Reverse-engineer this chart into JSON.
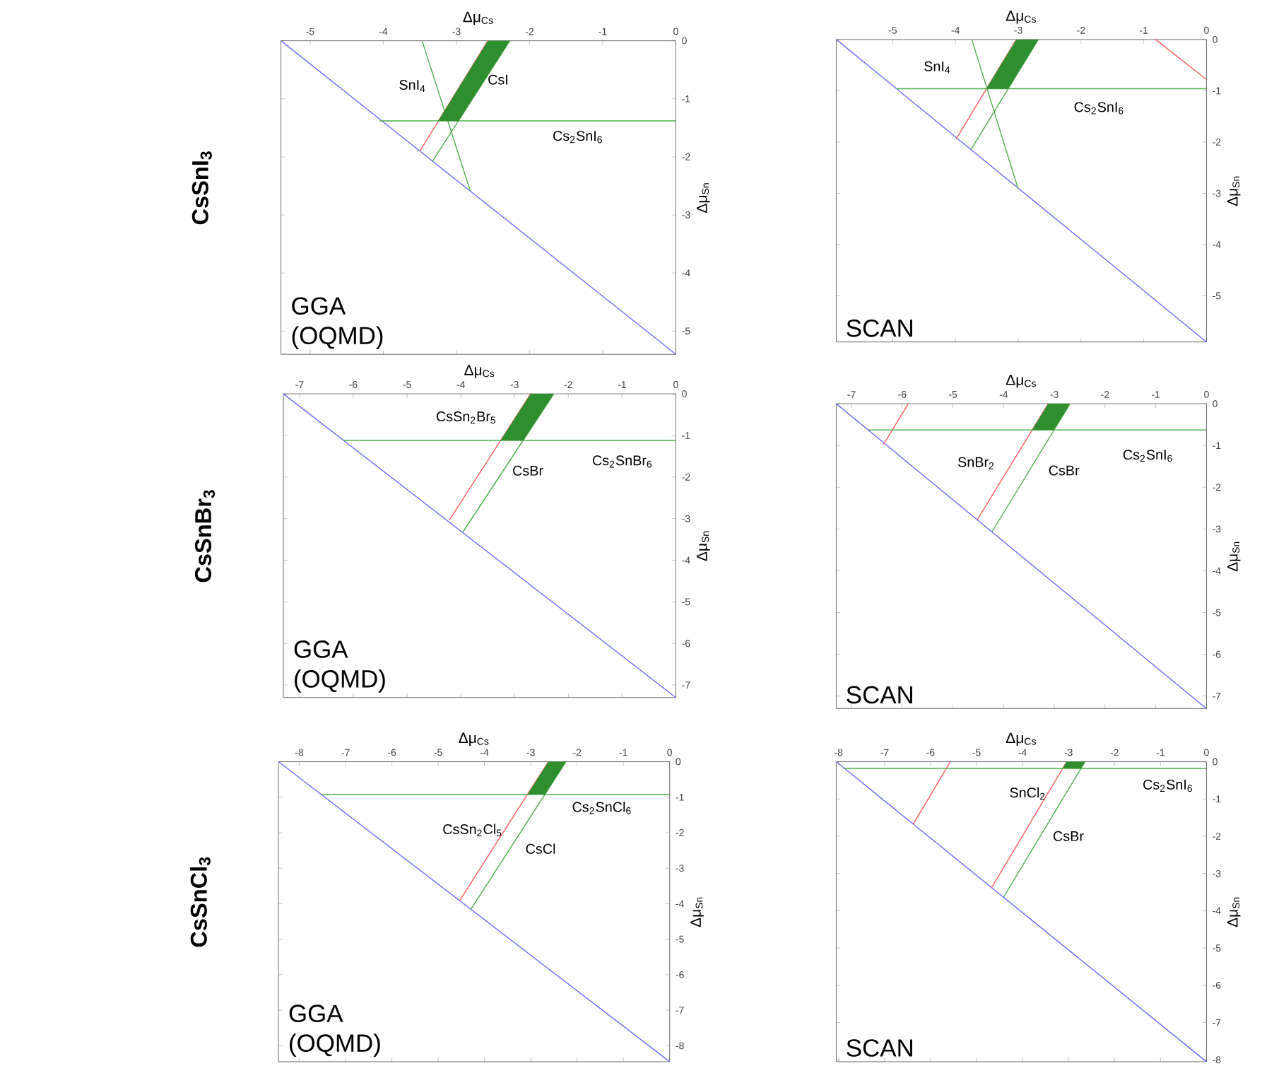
{
  "chart_data": [
    {
      "type": "line",
      "title": "CsSnI$_{3}$",
      "xlabel": "Δμ$_{Cs}$",
      "ylabel": "Δμ$_{Sn}$",
      "xlim": [
        -5.4,
        0
      ],
      "ylim": [
        -5.4,
        0
      ],
      "xticks": [
        -5,
        -4,
        -3,
        -2,
        -1,
        0
      ],
      "yticks": [
        -5,
        -4,
        -3,
        -2,
        -1,
        0
      ],
      "series": [
        {
          "color": "#6b6bff",
          "x": [
            -5.4,
            0
          ],
          "values": [
            0,
            -5.4
          ]
        },
        {
          "color": "#ff5c5c",
          "x": [
            -2.57,
            -3.5
          ],
          "values": [
            0,
            -1.9
          ]
        },
        {
          "color": "#4caf4c",
          "x": [
            -2.27,
            -3.33
          ],
          "values": [
            0,
            -2.08
          ]
        },
        {
          "color": "#4caf4c",
          "x": [
            -4.05,
            0
          ],
          "values": [
            -1.38,
            -1.38
          ]
        },
        {
          "color": "#4caf4c",
          "x": [
            -3.47,
            -2.81
          ],
          "values": [
            0,
            -2.59
          ]
        },
        {
          "type": "area",
          "color": "#2f8f2f",
          "x": [
            -2.57,
            -2.27,
            -2.97,
            -3.25
          ],
          "values": [
            0,
            0,
            -1.38,
            -1.38
          ]
        }
      ],
      "annotations": [
        "SnI$_{4}$",
        "CsI",
        "Cs$_{2}$SnI$_{6}$",
        "GGA (OQMD)"
      ]
    },
    {
      "type": "line",
      "xlabel": "Δμ$_{Cs}$",
      "ylabel": "Δμ$_{Sn}$",
      "xlim": [
        -5.9,
        0
      ],
      "ylim": [
        -5.9,
        0
      ],
      "xticks": [
        -5,
        -4,
        -3,
        -2,
        -1,
        0
      ],
      "yticks": [
        -5,
        -4,
        -3,
        -2,
        -1,
        0
      ],
      "series": [
        {
          "color": "#6b6bff",
          "x": [
            -5.9,
            0
          ],
          "values": [
            0,
            -5.9
          ]
        },
        {
          "color": "#ff5c5c",
          "x": [
            -0.81,
            0
          ],
          "values": [
            0,
            -0.78
          ]
        },
        {
          "color": "#ff5c5c",
          "x": [
            -3.03,
            -3.99
          ],
          "values": [
            0,
            -1.94
          ]
        },
        {
          "color": "#4caf4c",
          "x": [
            -2.68,
            -3.75
          ],
          "values": [
            0,
            -2.14
          ]
        },
        {
          "color": "#4caf4c",
          "x": [
            -4.94,
            0
          ],
          "values": [
            -0.96,
            -0.96
          ]
        },
        {
          "color": "#4caf4c",
          "x": [
            -3.74,
            -3.0
          ],
          "values": [
            0,
            -2.92
          ]
        },
        {
          "type": "area",
          "color": "#2f8f2f",
          "x": [
            -3.03,
            -2.68,
            -3.16,
            -3.51
          ],
          "values": [
            0,
            0,
            -0.96,
            -0.96
          ]
        }
      ],
      "annotations": [
        "SnI$_{4}$",
        "Cs$_{2}$SnI$_{6}$",
        "SCAN"
      ]
    },
    {
      "type": "line",
      "title": "CsSnBr$_{3}$",
      "xlabel": "Δμ$_{Cs}$",
      "ylabel": "Δμ$_{Sn}$",
      "xlim": [
        -7.3,
        0
      ],
      "ylim": [
        -7.3,
        0
      ],
      "xticks": [
        -7,
        -6,
        -5,
        -4,
        -3,
        -2,
        -1,
        0
      ],
      "yticks": [
        -7,
        -6,
        -5,
        -4,
        -3,
        -2,
        -1,
        0
      ],
      "series": [
        {
          "color": "#6b6bff",
          "x": [
            -7.3,
            0
          ],
          "values": [
            0,
            -7.3
          ]
        },
        {
          "color": "#ff5c5c",
          "x": [
            -2.7,
            -4.21
          ],
          "values": [
            0,
            -3.03
          ]
        },
        {
          "color": "#4caf4c",
          "x": [
            -2.27,
            -3.96
          ],
          "values": [
            0,
            -3.32
          ]
        },
        {
          "color": "#4caf4c",
          "x": [
            -6.18,
            0
          ],
          "values": [
            -1.12,
            -1.12
          ]
        },
        {
          "type": "area",
          "color": "#2f8f2f",
          "x": [
            -2.7,
            -2.27,
            -2.84,
            -3.26
          ],
          "values": [
            0,
            0,
            -1.12,
            -1.12
          ]
        }
      ],
      "annotations": [
        "CsSn$_{2}$Br$_{5}$",
        "CsBr",
        "Cs$_{2}$SnBr$_{6}$",
        "GGA (OQMD)"
      ]
    },
    {
      "type": "line",
      "xlabel": "Δμ$_{Cs}$",
      "ylabel": "Δμ$_{Sn}$",
      "xlim": [
        -7.3,
        0
      ],
      "ylim": [
        -7.3,
        0
      ],
      "xticks": [
        -7,
        -6,
        -5,
        -4,
        -3,
        -2,
        -1,
        0
      ],
      "yticks": [
        -7,
        -6,
        -5,
        -4,
        -3,
        -2,
        -1,
        0
      ],
      "series": [
        {
          "color": "#6b6bff",
          "x": [
            -7.3,
            0
          ],
          "values": [
            0,
            -7.3
          ]
        },
        {
          "color": "#ff5c5c",
          "x": [
            -5.88,
            -6.37
          ],
          "values": [
            0,
            -0.98
          ]
        },
        {
          "color": "#ff5c5c",
          "x": [
            -3.12,
            -4.52
          ],
          "values": [
            0,
            -2.78
          ]
        },
        {
          "color": "#4caf4c",
          "x": [
            -2.69,
            -4.23
          ],
          "values": [
            0,
            -3.07
          ]
        },
        {
          "color": "#4caf4c",
          "x": [
            -6.67,
            0
          ],
          "values": [
            -0.63,
            -0.63
          ]
        },
        {
          "type": "area",
          "color": "#2f8f2f",
          "x": [
            -3.12,
            -2.69,
            -3.01,
            -3.44
          ],
          "values": [
            0,
            0,
            -0.63,
            -0.63
          ]
        }
      ],
      "annotations": [
        "SnBr$_{2}$",
        "CsBr",
        "Cs$_{2}$SnI$_{6}$",
        "SCAN"
      ]
    },
    {
      "type": "line",
      "title": "CsSnCl$_{3}$",
      "xlabel": "Δμ$_{Cs}$",
      "ylabel": "Δμ$_{Sn}$",
      "xlim": [
        -8.45,
        0
      ],
      "ylim": [
        -8.45,
        0
      ],
      "xticks": [
        -8,
        -7,
        -6,
        -5,
        -4,
        -3,
        -2,
        -1,
        0
      ],
      "yticks": [
        -8,
        -7,
        -6,
        -5,
        -4,
        -3,
        -2,
        -1,
        0
      ],
      "series": [
        {
          "color": "#6b6bff",
          "x": [
            -8.45,
            0
          ],
          "values": [
            0,
            -8.45
          ]
        },
        {
          "color": "#ff5c5c",
          "x": [
            -2.62,
            -4.54
          ],
          "values": [
            0,
            -3.92
          ]
        },
        {
          "color": "#4caf4c",
          "x": [
            -2.24,
            -4.3
          ],
          "values": [
            0,
            -4.17
          ]
        },
        {
          "color": "#4caf4c",
          "x": [
            -7.53,
            0
          ],
          "values": [
            -0.92,
            -0.92
          ]
        },
        {
          "type": "area",
          "color": "#2f8f2f",
          "x": [
            -2.62,
            -2.24,
            -2.69,
            -3.07
          ],
          "values": [
            0,
            0,
            -0.92,
            -0.92
          ]
        }
      ],
      "annotations": [
        "CsSn$_{2}$Cl$_{5}$",
        "CsCl",
        "Cs$_{2}$SnCl$_{6}$",
        "GGA (OQMD)"
      ]
    },
    {
      "type": "line",
      "xlabel": "Δμ$_{Cs}$",
      "ylabel": "Δμ$_{Sn}$",
      "xlim": [
        -8.05,
        0
      ],
      "ylim": [
        -8.05,
        0
      ],
      "xticks": [
        -8,
        -7,
        -6,
        -5,
        -4,
        -3,
        -2,
        -1,
        0
      ],
      "yticks": [
        -8,
        -7,
        -6,
        -5,
        -4,
        -3,
        -2,
        -1,
        0
      ],
      "series": [
        {
          "color": "#6b6bff",
          "x": [
            -8.05,
            0
          ],
          "values": [
            0,
            -8.05
          ]
        },
        {
          "color": "#ff5c5c",
          "x": [
            -5.57,
            -6.38
          ],
          "values": [
            0,
            -1.68
          ]
        },
        {
          "color": "#ff5c5c",
          "x": [
            -3.04,
            -4.67
          ],
          "values": [
            0,
            -3.38
          ]
        },
        {
          "color": "#4caf4c",
          "x": [
            -2.64,
            -4.41
          ],
          "values": [
            0,
            -3.63
          ]
        },
        {
          "color": "#4caf4c",
          "x": [
            -7.87,
            0
          ],
          "values": [
            -0.18,
            -0.18
          ]
        },
        {
          "type": "area",
          "color": "#2f8f2f",
          "x": [
            -3.04,
            -2.64,
            -2.73,
            -3.13
          ],
          "values": [
            0,
            0,
            -0.18,
            -0.18
          ]
        }
      ],
      "annotations": [
        "SnCl$_{2}$",
        "CsBr",
        "Cs$_{2}$SnI$_{6}$",
        "SCAN"
      ]
    }
  ]
}
